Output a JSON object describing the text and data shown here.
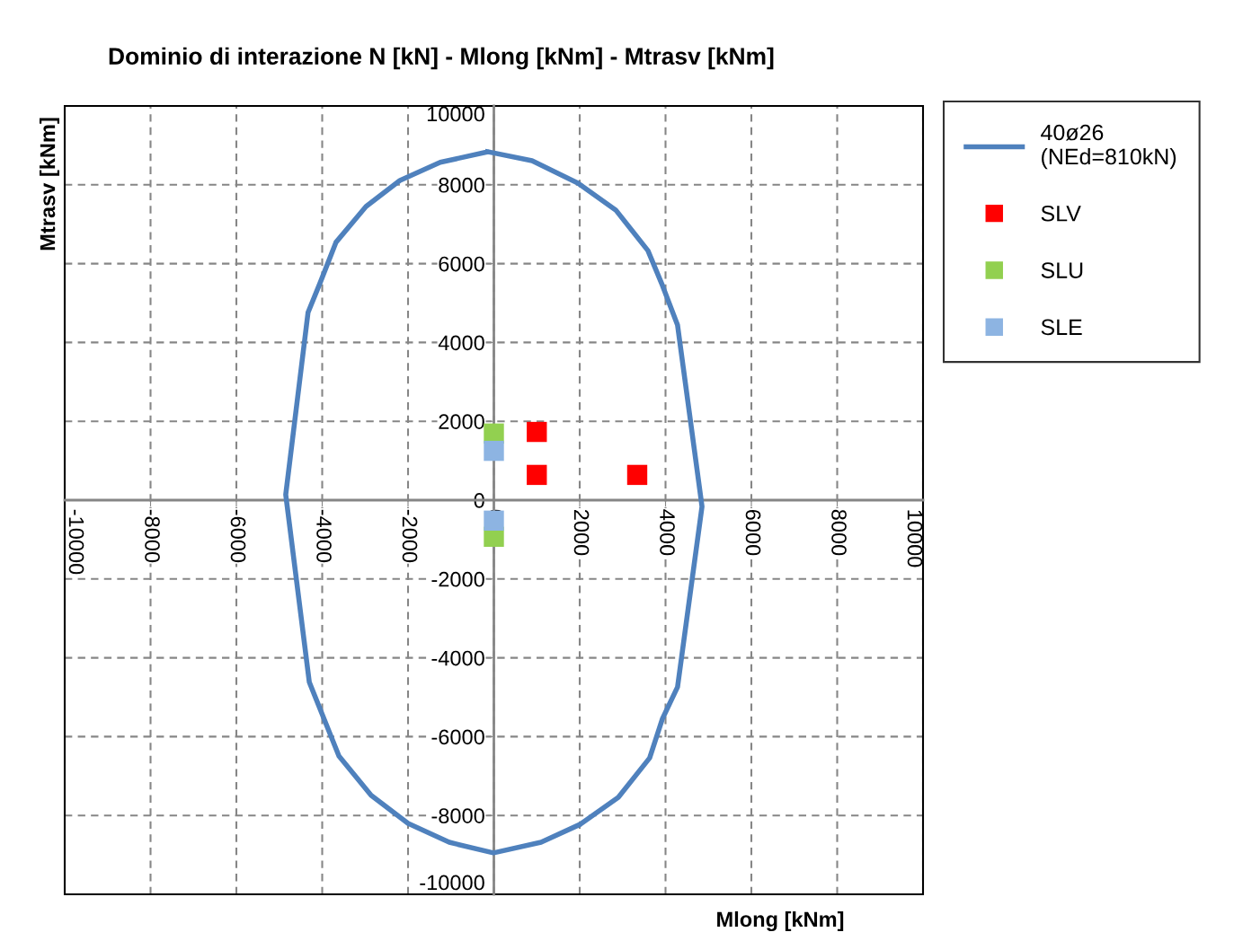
{
  "chart_data": {
    "type": "scatter",
    "title": "Dominio di interazione N [kN] - Mlong [kNm] - Mtrasv [kNm]",
    "xlabel": "Mlong [kNm]",
    "ylabel": "Mtrasv [kNm]",
    "xlim": [
      -10000,
      10000
    ],
    "ylim": [
      -10000,
      10000
    ],
    "xticks": [
      -10000,
      -8000,
      -6000,
      -4000,
      -2000,
      0,
      2000,
      4000,
      6000,
      8000,
      10000
    ],
    "yticks": [
      -10000,
      -8000,
      -6000,
      -4000,
      -2000,
      0,
      2000,
      4000,
      6000,
      8000,
      10000
    ],
    "grid": true,
    "legend": "right",
    "marker": "square",
    "series": [
      {
        "name": "40ø26\n(NEd=810kN)",
        "type": "line",
        "color": "#4f81bd",
        "marker": "none",
        "line_style": "solid",
        "x": [
          -150,
          890,
          1960,
          2840,
          3590,
          3930,
          4280,
          4850,
          4280,
          3930,
          3630,
          2900,
          2020,
          1100,
          -10,
          -1040,
          -2000,
          -2860,
          -3610,
          -4300,
          -4850,
          -4330,
          -4050,
          -3680,
          -2980,
          -2190,
          -1250,
          -170
        ],
        "values": [
          8840,
          8610,
          8040,
          7360,
          6330,
          5440,
          4440,
          -160,
          -4740,
          -5540,
          -6540,
          -7540,
          -8220,
          -8680,
          -8950,
          -8680,
          -8200,
          -7490,
          -6490,
          -4620,
          140,
          4760,
          5510,
          6540,
          7450,
          8110,
          8570,
          8830
        ]
      },
      {
        "name": "SLV",
        "color": "#ff0000",
        "x": [
          1000,
          1000,
          3340
        ],
        "values": [
          1730,
          640,
          640
        ]
      },
      {
        "name": "SLU",
        "color": "#92d050",
        "x": [
          0,
          0
        ],
        "values": [
          1690,
          -930
        ]
      },
      {
        "name": "SLE",
        "color": "#8db4e2",
        "x": [
          0,
          0
        ],
        "values": [
          1250,
          -520
        ]
      }
    ]
  }
}
